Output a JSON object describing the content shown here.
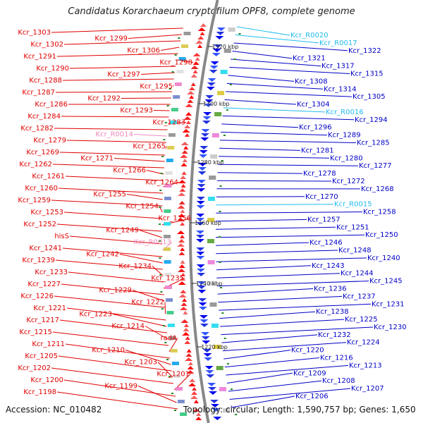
{
  "title": "Candidatus Korarchaeum cryptofilum OPF8, complete genome",
  "footer": {
    "accession": "Accession: NC_010482",
    "topology": "Topology: circular; Length: 1,590,757 bp; Genes: 1,650"
  },
  "colors": {
    "left_label": "#e00000",
    "left_rna_label": "#ee88bb",
    "right_label": "#0000c8",
    "right_rna_label": "#22bbee",
    "backbone": "#888888"
  },
  "kbp_markers": [
    "1320 kbp",
    "1300 kbp",
    "1280 kbp",
    "1260 kbp",
    "1240 kbp",
    "1220 kbp"
  ],
  "left_labels": [
    {
      "text": "Kcr_1303"
    },
    {
      "text": "Kcr_1299"
    },
    {
      "text": "Kcr_1302"
    },
    {
      "text": "Kcr_1306"
    },
    {
      "text": "Kcr_1291"
    },
    {
      "text": "Kcr_1298"
    },
    {
      "text": "Kcr_1290"
    },
    {
      "text": "Kcr_1297"
    },
    {
      "text": "Kcr_1288"
    },
    {
      "text": "Kcr_1295"
    },
    {
      "text": "Kcr_1287"
    },
    {
      "text": "Kcr_1292"
    },
    {
      "text": "Kcr_1286"
    },
    {
      "text": "Kcr_1293"
    },
    {
      "text": "Kcr_1284"
    },
    {
      "text": "Kcr_1283"
    },
    {
      "text": "Kcr_1282"
    },
    {
      "text": "Kcr_R0014",
      "rna": true
    },
    {
      "text": "Kcr_1279"
    },
    {
      "text": "Kcr_1265"
    },
    {
      "text": "Kcr_1269"
    },
    {
      "text": "Kcr_1271"
    },
    {
      "text": "Kcr_1262"
    },
    {
      "text": "Kcr_1266"
    },
    {
      "text": "Kcr_1261"
    },
    {
      "text": "Kcr_1264"
    },
    {
      "text": "Kcr_1260"
    },
    {
      "text": "Kcr_1255"
    },
    {
      "text": "Kcr_1259"
    },
    {
      "text": "Kcr_1254"
    },
    {
      "text": "Kcr_1253"
    },
    {
      "text": "Kcr_1256"
    },
    {
      "text": "Kcr_1252"
    },
    {
      "text": "Kcr_1249"
    },
    {
      "text": "hisS"
    },
    {
      "text": "Kcr_R0013",
      "rna": true
    },
    {
      "text": "Kcr_1241"
    },
    {
      "text": "Kcr_1242"
    },
    {
      "text": "Kcr_1239"
    },
    {
      "text": "Kcr_1234"
    },
    {
      "text": "Kcr_1233"
    },
    {
      "text": "Kcr_1235"
    },
    {
      "text": "Kcr_1227"
    },
    {
      "text": "Kcr_1229"
    },
    {
      "text": "Kcr_1226"
    },
    {
      "text": "Kcr_1222"
    },
    {
      "text": "Kcr_1221"
    },
    {
      "text": "Kcr_1223"
    },
    {
      "text": "Kcr_1217"
    },
    {
      "text": "Kcr_1214"
    },
    {
      "text": "Kcr_1215"
    },
    {
      "text": "radA"
    },
    {
      "text": "Kcr_1211"
    },
    {
      "text": "Kcr_1210"
    },
    {
      "text": "Kcr_1205"
    },
    {
      "text": "Kcr_1203"
    },
    {
      "text": "Kcr_1202"
    },
    {
      "text": "Kcr_1201"
    },
    {
      "text": "Kcr_1200"
    },
    {
      "text": "Kcr_1199"
    },
    {
      "text": "Kcr_1198"
    }
  ],
  "right_labels": [
    {
      "text": "Kcr_R0020",
      "rna": true
    },
    {
      "text": "Kcr_R0017",
      "rna": true
    },
    {
      "text": "Kcr_1322"
    },
    {
      "text": "Kcr_1321"
    },
    {
      "text": "Kcr_1317"
    },
    {
      "text": "Kcr_1315"
    },
    {
      "text": "Kcr_1308"
    },
    {
      "text": "Kcr_1314"
    },
    {
      "text": "Kcr_1305"
    },
    {
      "text": "Kcr_1304"
    },
    {
      "text": "Kcr_R0016",
      "rna": true
    },
    {
      "text": "Kcr_1294"
    },
    {
      "text": "Kcr_1296"
    },
    {
      "text": "Kcr_1289"
    },
    {
      "text": "Kcr_1285"
    },
    {
      "text": "Kcr_1281"
    },
    {
      "text": "Kcr_1280"
    },
    {
      "text": "Kcr_1277"
    },
    {
      "text": "Kcr_1278"
    },
    {
      "text": "Kcr_1272"
    },
    {
      "text": "Kcr_1268"
    },
    {
      "text": "Kcr_1270"
    },
    {
      "text": "Kcr_R0015",
      "rna": true
    },
    {
      "text": "Kcr_1258"
    },
    {
      "text": "Kcr_1257"
    },
    {
      "text": "Kcr_1251"
    },
    {
      "text": "Kcr_1250"
    },
    {
      "text": "Kcr_1246"
    },
    {
      "text": "Kcr_1248"
    },
    {
      "text": "Kcr_1240"
    },
    {
      "text": "Kcr_1243"
    },
    {
      "text": "Kcr_1244"
    },
    {
      "text": "Kcr_1245"
    },
    {
      "text": "Kcr_1236"
    },
    {
      "text": "Kcr_1237"
    },
    {
      "text": "Kcr_1231"
    },
    {
      "text": "Kcr_1238"
    },
    {
      "text": "Kcr_1225"
    },
    {
      "text": "Kcr_1230"
    },
    {
      "text": "Kcr_1232"
    },
    {
      "text": "Kcr_1224"
    },
    {
      "text": "Kcr_1220"
    },
    {
      "text": "Kcr_1216"
    },
    {
      "text": "Kcr_1213"
    },
    {
      "text": "Kcr_1209"
    },
    {
      "text": "Kcr_1208"
    },
    {
      "text": "Kcr_1207"
    },
    {
      "text": "Kcr_1206"
    }
  ]
}
